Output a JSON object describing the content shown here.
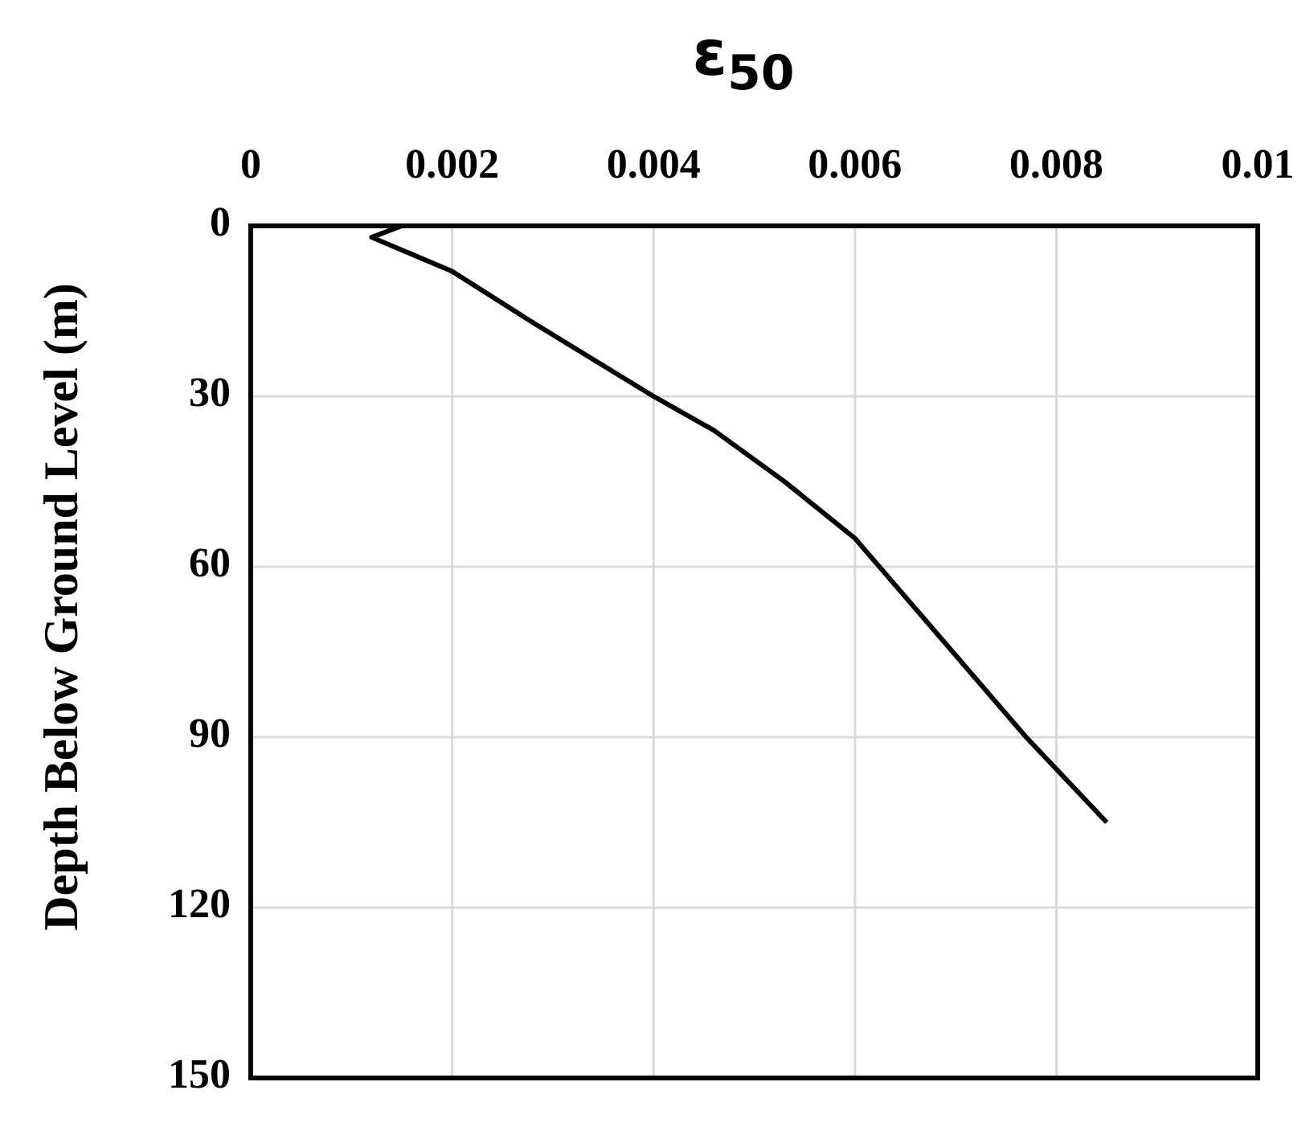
{
  "chart_data": {
    "type": "line",
    "xlabel": "ε",
    "xlabel_subscript": "50",
    "ylabel": "Depth Below Ground Level (m)",
    "x": [
      0.0015,
      0.0012,
      0.002,
      0.0028,
      0.004,
      0.0046,
      0.0053,
      0.006,
      0.0077,
      0.0085
    ],
    "values": [
      0,
      2,
      8,
      17,
      30,
      36,
      45,
      55,
      90,
      105
    ],
    "color": "#000000",
    "xlim": [
      0,
      0.01
    ],
    "xticks": [
      0,
      0.002,
      0.004,
      0.006,
      0.008,
      0.01
    ],
    "ylim": [
      0,
      150
    ],
    "yticks": [
      0,
      30,
      60,
      90,
      120,
      150
    ],
    "y_inverted": true,
    "x_axis_position": "top",
    "grid": true
  }
}
